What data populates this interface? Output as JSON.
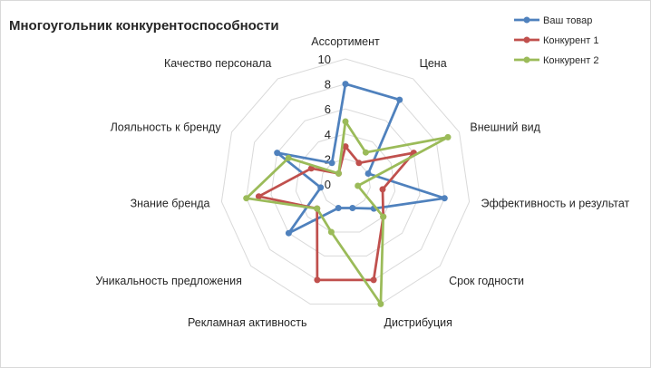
{
  "chart_data": {
    "type": "radar",
    "title": "Многоугольник конкурентоспособности",
    "categories": [
      "Ассортимент",
      "Цена",
      "Внешний вид",
      "Эффективность и результат",
      "Срок годности",
      "Дистрибуция",
      "Рекламная активность",
      "Уникальность предложения",
      "Знание бренда",
      "Лояльность к бренду",
      "Качество персонала"
    ],
    "radial_ticks": [
      "0",
      "2",
      "4",
      "6",
      "8",
      "10"
    ],
    "rlim": [
      0,
      10
    ],
    "grid": true,
    "legend_position": "top-right",
    "series": [
      {
        "name": "Ваш товар",
        "color": "#4f81bd",
        "values": [
          8,
          8,
          2,
          8,
          3,
          2,
          2,
          6,
          2,
          6,
          2
        ]
      },
      {
        "name": "Конкурент 1",
        "color": "#c0504d",
        "values": [
          3,
          2,
          6,
          3,
          4,
          8,
          8,
          3,
          7,
          3,
          1
        ]
      },
      {
        "name": "Конкурент 2",
        "color": "#9bbb59",
        "values": [
          5,
          3,
          9,
          1,
          4,
          10,
          4,
          3,
          8,
          5,
          1
        ]
      }
    ]
  }
}
